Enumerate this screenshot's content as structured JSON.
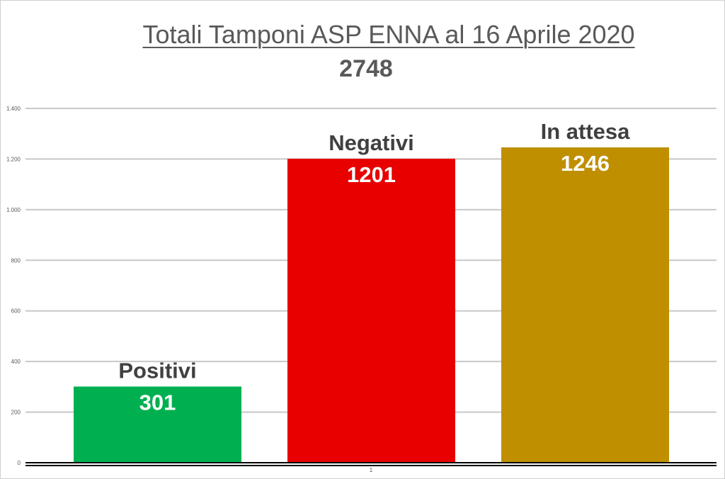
{
  "title": "Totali Tamponi ASP ENNA al 16 Aprile 2020",
  "total": "2748",
  "chart_data": {
    "type": "bar",
    "title": "Totali Tamponi ASP ENNA al 16 Aprile 2020",
    "categories": [
      "1"
    ],
    "ylim": [
      0,
      1400
    ],
    "yticks": [
      0,
      200,
      400,
      600,
      800,
      1000,
      1200,
      1400
    ],
    "ytick_labels": [
      "0",
      "200",
      "400",
      "600",
      "800",
      "1.000",
      "1.200",
      "1.400"
    ],
    "grid": true,
    "series": [
      {
        "name": "Positivi",
        "values": [
          301
        ],
        "label": "301",
        "color": "#00b050"
      },
      {
        "name": "Negativi",
        "values": [
          1201
        ],
        "label": "1201",
        "color": "#e80000"
      },
      {
        "name": "In attesa",
        "values": [
          1246
        ],
        "label": "1246",
        "color": "#bf8f00"
      }
    ]
  }
}
